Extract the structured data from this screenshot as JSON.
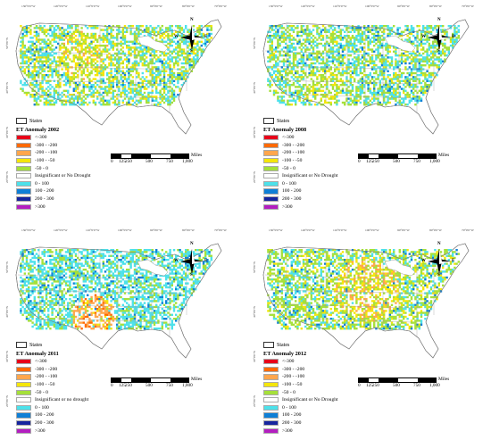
{
  "longitude_labels": [
    "130°0'0\"W",
    "120°0'0\"W",
    "110°0'0\"W",
    "100°0'0\"W",
    "90°0'0\"W",
    "80°0'0\"W",
    "70°0'0\"W"
  ],
  "latitude_labels": [
    "50°0'0\"N",
    "40°0'0\"N",
    "30°0'0\"N",
    "20°0'0\"N"
  ],
  "compass": {
    "n": "N",
    "s": "S",
    "e": "E",
    "w": "W"
  },
  "scale": {
    "ticks": [
      "0",
      "125",
      "250",
      "500",
      "750",
      "1,000"
    ],
    "unit": "Miles"
  },
  "states_label": "States",
  "legend_colors": [
    "#e8001a",
    "#ff6a00",
    "#ffa64d",
    "#f5e60a",
    "#a5e03a",
    "#ffffff",
    "#4de1ea",
    "#0f7fd6",
    "#16259e",
    "#b31ec0"
  ],
  "panels": [
    {
      "title": "ET Anomaly 2002",
      "dominant_class": "-100 - -50",
      "legend": [
        "<-300",
        "-300 - -200",
        "-200 - -100",
        "-100 - -50",
        "-50 - 0",
        "Insignificant or No Drought",
        "0 - 100",
        "100 - 200",
        "200 - 300",
        ">300"
      ]
    },
    {
      "title": "ET Anomaly 2008",
      "dominant_class": "-50 - 0",
      "legend": [
        "<-300",
        "-300 - -200",
        "-200 - -100",
        "-100 - -50",
        "-50 - 0",
        "Insignificant or No Drought",
        "0 - 100",
        "100 - 200",
        "200 - 300",
        ">300"
      ]
    },
    {
      "title": "ET Anomaly 2011",
      "dominant_class": "-200 - -100",
      "legend": [
        "<-300",
        "-300 - -200",
        "-200 - -100",
        "-100 - -50",
        "-50 - 0",
        "Insignificant or no drought",
        "0 - 100",
        "100 - 200",
        "200 - 300",
        ">300"
      ]
    },
    {
      "title": "ET Anomaly 2012",
      "dominant_class": "-50 - 0",
      "legend": [
        "<-300",
        "-300 - -200",
        "-200 - -100",
        "-100 - -50",
        "-50 - 0",
        "Insignificant or No Drought",
        "0 - 100",
        "100 - 200",
        "200 - 300",
        ">300"
      ]
    }
  ]
}
